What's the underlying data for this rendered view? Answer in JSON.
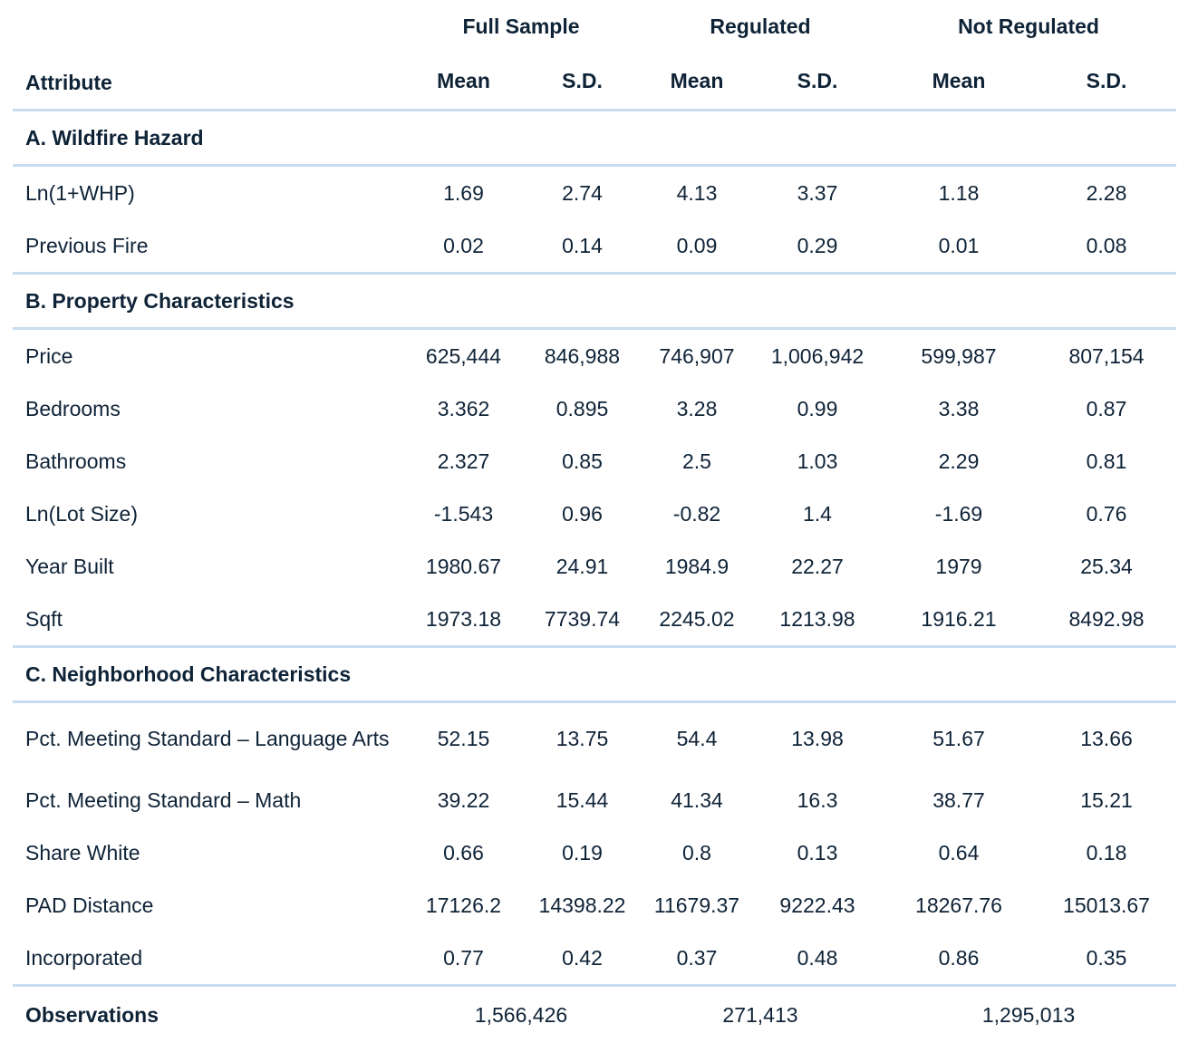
{
  "header": {
    "groups": [
      "Full Sample",
      "Regulated",
      "Not Regulated"
    ],
    "attribute_label": "Attribute",
    "sub_columns": [
      "Mean",
      "S.D.",
      "Mean",
      "S.D.",
      "Mean",
      "S.D."
    ]
  },
  "sections": [
    {
      "title": "A. Wildfire Hazard",
      "rows": [
        {
          "label": "Ln(1+WHP)",
          "values": [
            "1.69",
            "2.74",
            "4.13",
            "3.37",
            "1.18",
            "2.28"
          ]
        },
        {
          "label": "Previous Fire",
          "values": [
            "0.02",
            "0.14",
            "0.09",
            "0.29",
            "0.01",
            "0.08"
          ]
        }
      ]
    },
    {
      "title": "B. Property Characteristics",
      "rows": [
        {
          "label": "Price",
          "values": [
            "625,444",
            "846,988",
            "746,907",
            "1,006,942",
            "599,987",
            "807,154"
          ]
        },
        {
          "label": "Bedrooms",
          "values": [
            "3.362",
            "0.895",
            "3.28",
            "0.99",
            "3.38",
            "0.87"
          ]
        },
        {
          "label": "Bathrooms",
          "values": [
            "2.327",
            "0.85",
            "2.5",
            "1.03",
            "2.29",
            "0.81"
          ]
        },
        {
          "label": "Ln(Lot Size)",
          "values": [
            "-1.543",
            "0.96",
            "-0.82",
            "1.4",
            "-1.69",
            "0.76"
          ]
        },
        {
          "label": "Year Built",
          "values": [
            "1980.67",
            "24.91",
            "1984.9",
            "22.27",
            "1979",
            "25.34"
          ]
        },
        {
          "label": "Sqft",
          "values": [
            "1973.18",
            "7739.74",
            "2245.02",
            "1213.98",
            "1916.21",
            "8492.98"
          ]
        }
      ]
    },
    {
      "title": "C. Neighborhood Characteristics",
      "rows": [
        {
          "label": "Pct. Meeting Standard – Language Arts",
          "values": [
            "52.15",
            "13.75",
            "54.4",
            "13.98",
            "51.67",
            "13.66"
          ]
        },
        {
          "label": "Pct. Meeting Standard – Math",
          "values": [
            "39.22",
            "15.44",
            "41.34",
            "16.3",
            "38.77",
            "15.21"
          ]
        },
        {
          "label": "Share White",
          "values": [
            "0.66",
            "0.19",
            "0.8",
            "0.13",
            "0.64",
            "0.18"
          ]
        },
        {
          "label": "PAD Distance",
          "values": [
            "17126.2",
            "14398.22",
            "11679.37",
            "9222.43",
            "18267.76",
            "15013.67"
          ]
        },
        {
          "label": "Incorporated",
          "values": [
            "0.77",
            "0.42",
            "0.37",
            "0.48",
            "0.86",
            "0.35"
          ]
        }
      ]
    }
  ],
  "observations": {
    "label": "Observations",
    "values": [
      "1,566,426",
      "271,413",
      "1,295,013"
    ]
  }
}
